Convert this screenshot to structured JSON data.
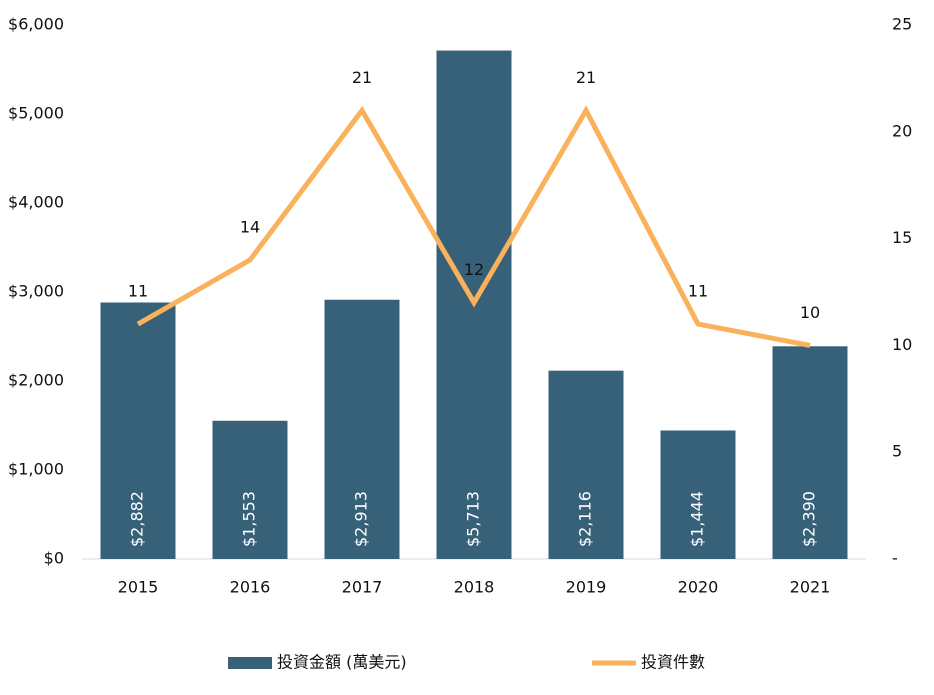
{
  "chart_data": {
    "type": "combo",
    "categories": [
      "2015",
      "2016",
      "2017",
      "2018",
      "2019",
      "2020",
      "2021"
    ],
    "series": [
      {
        "name": "投資金額 (萬美元)",
        "type": "bar",
        "color": "#376079",
        "values": [
          2882,
          1553,
          2913,
          5713,
          2116,
          1444,
          2390
        ],
        "value_labels": [
          "$2,882",
          "$1,553",
          "$2,913",
          "$5,713",
          "$2,116",
          "$1,444",
          "$2,390"
        ]
      },
      {
        "name": "投資件數",
        "type": "line",
        "color": "#f9b15b",
        "axis": "y2",
        "values": [
          11,
          14,
          21,
          12,
          21,
          11,
          10
        ]
      }
    ],
    "ylim": [
      0,
      6000
    ],
    "yticks": [
      {
        "value": 0,
        "label": "$0"
      },
      {
        "value": 1000,
        "label": "$1,000"
      },
      {
        "value": 2000,
        "label": "$2,000"
      },
      {
        "value": 3000,
        "label": "$3,000"
      },
      {
        "value": 4000,
        "label": "$4,000"
      },
      {
        "value": 5000,
        "label": "$5,000"
      },
      {
        "value": 6000,
        "label": "$6,000"
      }
    ],
    "y2lim": [
      0,
      25
    ],
    "y2ticks": [
      {
        "value": 0,
        "label": "-"
      },
      5,
      10,
      15,
      20,
      25
    ],
    "legend": "bottom"
  }
}
